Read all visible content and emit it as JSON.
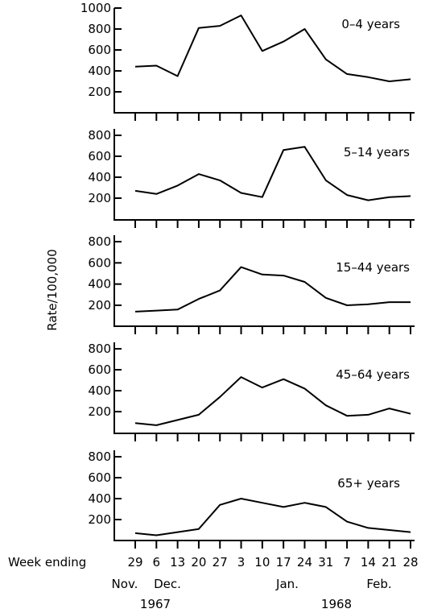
{
  "chart_data": {
    "type": "line",
    "ylabel": "Rate/100,000",
    "x_caption": "Week ending",
    "x": [
      "29",
      "6",
      "13",
      "20",
      "27",
      "3",
      "10",
      "17",
      "24",
      "31",
      "7",
      "14",
      "21",
      "28"
    ],
    "months": [
      "Nov.",
      "Dec.",
      "Jan.",
      "Feb."
    ],
    "years": [
      "1967",
      "1968"
    ],
    "panels": [
      {
        "name": "0–4 years",
        "ylim": [
          100,
          1000
        ],
        "yticks": [
          200,
          400,
          600,
          800,
          1000
        ],
        "values": [
          440,
          450,
          350,
          810,
          830,
          930,
          590,
          680,
          800,
          510,
          370,
          340,
          300,
          320
        ]
      },
      {
        "name": "5–14 years",
        "ylim": [
          100,
          800
        ],
        "yticks": [
          200,
          400,
          600,
          800
        ],
        "values": [
          270,
          240,
          320,
          430,
          370,
          250,
          210,
          660,
          690,
          370,
          230,
          180,
          210,
          220
        ]
      },
      {
        "name": "15–44 years",
        "ylim": [
          100,
          800
        ],
        "yticks": [
          200,
          400,
          600,
          800
        ],
        "values": [
          140,
          150,
          160,
          260,
          340,
          560,
          490,
          480,
          420,
          270,
          200,
          210,
          230,
          230
        ]
      },
      {
        "name": "45–64 years",
        "ylim": [
          100,
          800
        ],
        "yticks": [
          200,
          400,
          600,
          800
        ],
        "values": [
          90,
          70,
          120,
          170,
          340,
          530,
          430,
          510,
          420,
          260,
          160,
          170,
          230,
          180
        ]
      },
      {
        "name": "65+ years",
        "ylim": [
          100,
          800
        ],
        "yticks": [
          200,
          400,
          600,
          800
        ],
        "values": [
          70,
          50,
          80,
          110,
          340,
          400,
          360,
          320,
          360,
          320,
          180,
          120,
          100,
          80
        ]
      }
    ]
  }
}
